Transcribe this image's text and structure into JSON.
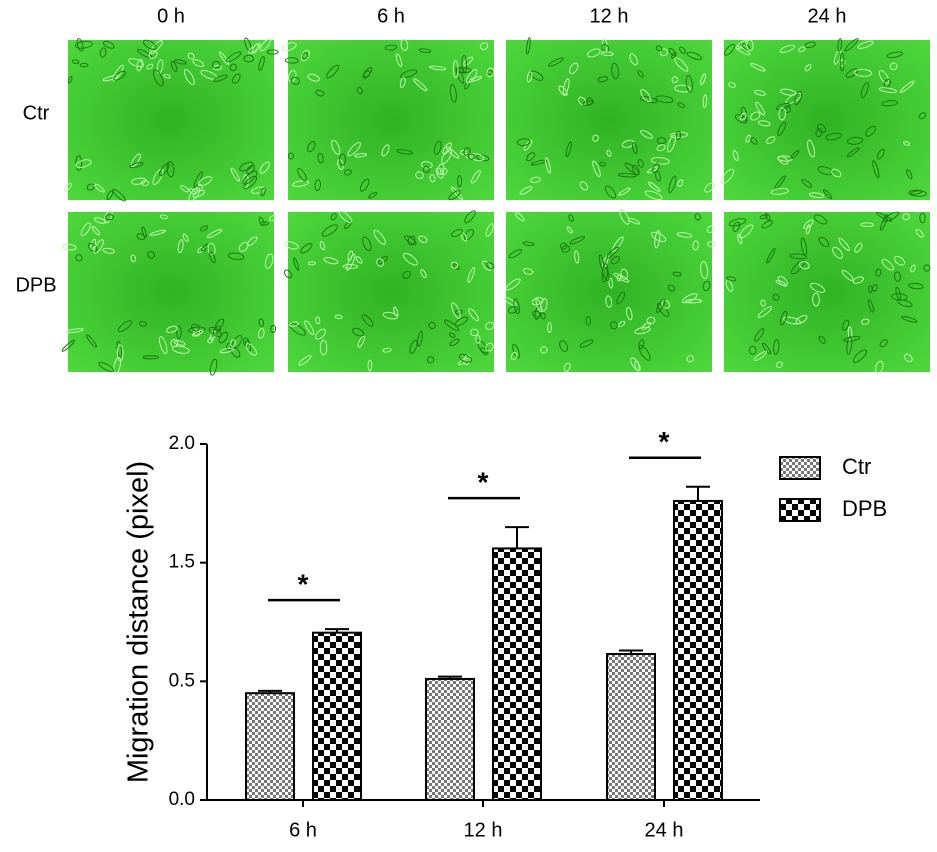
{
  "panels": {
    "columns": [
      "0 h",
      "6 h",
      "12 h",
      "24 h"
    ],
    "rows": [
      "Ctr",
      "DPB"
    ]
  },
  "chart_data": {
    "type": "bar",
    "ylabel": "Migration distance (pixel)",
    "categories": [
      "6 h",
      "12 h",
      "24 h"
    ],
    "series": [
      {
        "name": "Ctr",
        "color": "#808080",
        "values": [
          0.45,
          0.52,
          0.73
        ],
        "errors": [
          0.01,
          0.02,
          0.03
        ]
      },
      {
        "name": "DPB",
        "color": "#000000",
        "values": [
          0.91,
          1.56,
          1.76
        ],
        "errors": [
          0.03,
          0.09,
          0.06
        ]
      }
    ],
    "ylim": [
      0,
      2.0
    ],
    "yticks": [
      {
        "value": 0,
        "label": "0.0"
      },
      {
        "value": 0.5,
        "label": "0.5"
      },
      1.5,
      {
        "value": 2.0,
        "label": "2.0"
      }
    ],
    "significance": [
      "*",
      "*",
      "*"
    ]
  }
}
